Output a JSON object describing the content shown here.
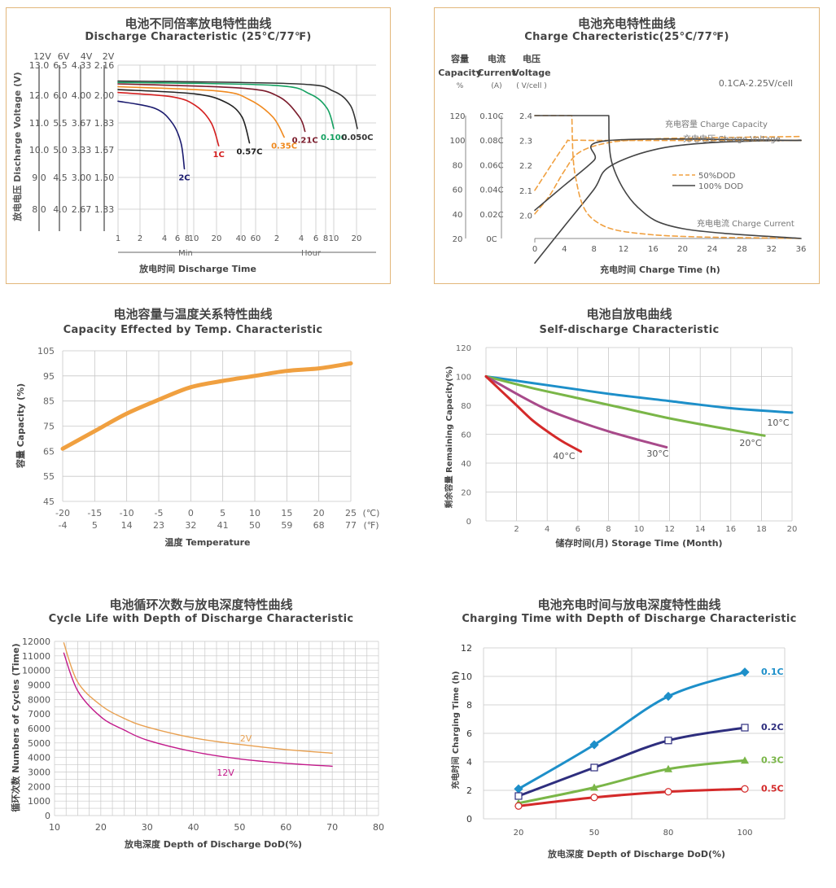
{
  "colors": {
    "border": "#e2b67a",
    "grid": "#c8c8c8",
    "axis": "#888",
    "orange": "#f0a040",
    "teal": "#1d8fc9",
    "green": "#7ab648",
    "purple": "#a84a8a",
    "red": "#d42a2a",
    "navy": "#2e2e7e",
    "magenta": "#c2198a",
    "lightorange": "#e8a050"
  },
  "charts": {
    "discharge": {
      "title_cn": "电池不同倍率放电特性曲线",
      "title_en": "Discharge Characteristic (25°C/77℉)",
      "v_headers": [
        "12V",
        "6V",
        "4V",
        "2V"
      ],
      "v_rows": [
        [
          "13.0",
          "6.5",
          "4.33",
          "2.16"
        ],
        [
          "12.0",
          "6.0",
          "4.00",
          "2.00"
        ],
        [
          "11.0",
          "5.5",
          "3.67",
          "1.83"
        ],
        [
          "10.0",
          "5.0",
          "3.33",
          "1.67"
        ],
        [
          "9.0",
          "4.5",
          "3.00",
          "1.50"
        ],
        [
          "8.0",
          "4.0",
          "2.67",
          "1.33"
        ]
      ],
      "ylabel": "放电电压 Discharge Voltage (V)",
      "x_ticks": [
        "1",
        "2",
        "4",
        "6",
        "8",
        "10",
        "20",
        "40",
        "60",
        "2",
        "4",
        "6",
        "8",
        "10",
        "20"
      ],
      "x_unit_min": "Min",
      "x_unit_hour": "Hour",
      "xlabel": "放电时间 Discharge Time",
      "rate_labels": [
        "2C",
        "1C",
        "0.57C",
        "0.35C",
        "0.21C",
        "0.10C",
        "0.050C"
      ]
    },
    "charge": {
      "title_cn": "电池充电特性曲线",
      "title_en": "Charge Charecteristic(25°C/77℉)",
      "col_headers": [
        [
          "容量",
          "Capacity",
          "%"
        ],
        [
          "电流",
          "Current",
          "(A)"
        ],
        [
          "电压",
          "Voltage",
          "( V/cell )"
        ]
      ],
      "capacity_ticks": [
        "120",
        "100",
        "80",
        "60",
        "40",
        "20"
      ],
      "current_ticks": [
        "0.10C",
        "0.08C",
        "0.06C",
        "0.04C",
        "0.02C",
        "0C"
      ],
      "voltage_ticks": [
        "2.4",
        "2.3",
        "2.2",
        "2.1",
        "2.0"
      ],
      "x_ticks": [
        "0",
        "4",
        "8",
        "12",
        "16",
        "20",
        "24",
        "28",
        "32",
        "36"
      ],
      "xlabel": "充电时间 Charge Time (h)",
      "note": "0.1CA-2.25V/cell",
      "curve_labels": [
        "充电容量 Charge Capacity",
        "充电电压 Charge Voltage",
        "充电电流 Charge Current"
      ],
      "legend": [
        "50%DOD",
        "100% DOD"
      ]
    },
    "temp": {
      "title_cn": "电池容量与温度关系特性曲线",
      "title_en": "Capacity Effected by Temp. Characteristic",
      "ylabel": "容量  Capacity (%)",
      "xlabel": "温度 Temperature",
      "c_unit": "(℃)",
      "f_unit": "(℉)"
    },
    "self": {
      "title_cn": "电池自放电曲线",
      "title_en": "Self-discharge Characteristic",
      "ylabel": "剩余容量 Remaining Capacity(%)",
      "xlabel": "储存时间(月) Storage Time  (Month)"
    },
    "cycle": {
      "title_cn": "电池循环次数与放电深度特性曲线",
      "title_en": "Cycle Life with Depth of Discharge Characteristic",
      "ylabel": "循环次数 Numbers of Cycles (Time)",
      "xlabel": "放电深度 Depth of Discharge DoD(%)"
    },
    "chgtime": {
      "title_cn": "电池充电时间与放电深度特性曲线",
      "title_en": "Charging Time with Depth of Discharge Characteristic",
      "ylabel": "充电时间 Charging Time (h)",
      "xlabel": "放电深度 Depth of Discharge DoD(%)"
    }
  },
  "chart_data": [
    {
      "type": "line",
      "title": "Discharge Characteristic (25°C/77℉)",
      "xscale": "log",
      "ylabel": "Discharge Voltage (V)",
      "series": [
        {
          "name": "2C",
          "x": [
            1,
            3,
            5,
            6.5,
            7.2
          ],
          "y": [
            11.75,
            11.5,
            11.0,
            10.3,
            9.4
          ]
        },
        {
          "name": "1C",
          "x": [
            1,
            5,
            10,
            16,
            20
          ],
          "y": [
            12.05,
            11.9,
            11.6,
            11.0,
            10.2
          ]
        },
        {
          "name": "0.57C",
          "x": [
            1,
            10,
            25,
            40,
            50
          ],
          "y": [
            12.15,
            12.0,
            11.7,
            11.2,
            10.3
          ]
        },
        {
          "name": "0.35C",
          "x": [
            1,
            20,
            50,
            100,
            140
          ],
          "y": [
            12.25,
            12.1,
            11.8,
            11.2,
            10.5
          ]
        },
        {
          "name": "0.21C",
          "x": [
            1,
            40,
            120,
            220,
            260
          ],
          "y": [
            12.35,
            12.2,
            11.9,
            11.2,
            10.7
          ]
        },
        {
          "name": "0.10C",
          "x": [
            1,
            100,
            300,
            500,
            610
          ],
          "y": [
            12.4,
            12.3,
            12.0,
            11.5,
            10.8
          ]
        },
        {
          "name": "0.050C",
          "x": [
            1,
            200,
            600,
            1000,
            1230
          ],
          "y": [
            12.45,
            12.35,
            12.1,
            11.6,
            10.8
          ]
        }
      ]
    },
    {
      "type": "line",
      "title": "Charge Charecteristic(25°C/77℉)",
      "x_unit": "h",
      "series": [
        {
          "name": "充电容量 Charge Capacity (50%DOD)",
          "x": [
            0,
            2,
            4,
            6,
            10,
            16,
            24,
            36
          ],
          "y": [
            40,
            55,
            75,
            90,
            98,
            101,
            102,
            103
          ]
        },
        {
          "name": "充电容量 Charge Capacity (100%DOD)",
          "x": [
            0,
            4,
            8,
            10,
            16,
            24,
            36
          ],
          "y": [
            0,
            30,
            60,
            78,
            92,
            98,
            100
          ]
        },
        {
          "name": "充电电压 Charge Voltage (50%DOD)",
          "x": [
            0,
            4,
            5,
            10,
            36
          ],
          "y": [
            2.1,
            2.28,
            2.3,
            2.3,
            2.3
          ]
        },
        {
          "name": "充电电压 Charge Voltage (100%DOD)",
          "x": [
            0,
            4,
            8,
            10,
            36
          ],
          "y": [
            2.02,
            2.12,
            2.22,
            2.3,
            2.3
          ]
        },
        {
          "name": "充电电流 Charge Current (50%DOD)",
          "x": [
            0,
            5,
            5.5,
            8,
            16,
            36
          ],
          "y": [
            0.1,
            0.1,
            0.05,
            0.015,
            0.003,
            0.0
          ]
        },
        {
          "name": "充电电流 Charge Current (100%DOD)",
          "x": [
            0,
            10,
            10.5,
            14,
            20,
            36
          ],
          "y": [
            0.1,
            0.1,
            0.06,
            0.025,
            0.008,
            0.0
          ]
        }
      ]
    },
    {
      "type": "line",
      "title": "Capacity Effected by Temp. Characteristic",
      "xlabel": "温度 Temperature",
      "ylabel": "容量  Capacity (%)",
      "ylim": [
        45,
        105
      ],
      "x_c": [
        -20,
        -15,
        -10,
        -5,
        0,
        5,
        10,
        15,
        20,
        25
      ],
      "x_f": [
        -4,
        5,
        14,
        23,
        32,
        41,
        50,
        59,
        68,
        77
      ],
      "y_ticks": [
        45,
        55,
        65,
        75,
        85,
        95,
        105
      ],
      "series": [
        {
          "x": [
            -20,
            -15,
            -10,
            -5,
            0,
            5,
            10,
            15,
            20,
            25
          ],
          "y": [
            66,
            73,
            80,
            85.5,
            90.5,
            93,
            95,
            97,
            98,
            100
          ]
        }
      ]
    },
    {
      "type": "line",
      "title": "Self-discharge Characteristic",
      "xlabel": "储存时间(月) Storage Time  (Month)",
      "ylabel": "剩余容量 Remaining Capacity(%)",
      "xlim": [
        0,
        20
      ],
      "ylim": [
        0,
        120
      ],
      "x_ticks": [
        2,
        4,
        6,
        8,
        10,
        12,
        14,
        16,
        18,
        20
      ],
      "y_ticks": [
        0,
        20,
        40,
        60,
        80,
        100,
        120
      ],
      "series": [
        {
          "name": "10°C",
          "x": [
            0,
            4,
            8,
            12,
            16,
            20
          ],
          "y": [
            100,
            94,
            88,
            83,
            78,
            75
          ]
        },
        {
          "name": "20°C",
          "x": [
            0,
            3,
            6,
            9,
            12,
            15,
            18.2
          ],
          "y": [
            100,
            92,
            85,
            78,
            71,
            65,
            59
          ]
        },
        {
          "name": "30°C",
          "x": [
            0,
            2,
            4,
            6,
            8,
            10,
            11.8
          ],
          "y": [
            100,
            88,
            77,
            69,
            62,
            56,
            51
          ]
        },
        {
          "name": "40°C",
          "x": [
            0,
            1,
            2,
            3,
            4,
            5,
            6.2
          ],
          "y": [
            100,
            90,
            80,
            70,
            62,
            55,
            48
          ]
        }
      ]
    },
    {
      "type": "line",
      "title": "Cycle Life with Depth of Discharge Characteristic",
      "xlabel": "放电深度 Depth of Discharge DoD(%)",
      "ylabel": "循环次数 Numbers of Cycles (Time)",
      "xlim": [
        10,
        80
      ],
      "ylim": [
        0,
        12000
      ],
      "x_ticks": [
        10,
        20,
        30,
        40,
        50,
        60,
        70,
        80
      ],
      "y_ticks": [
        0,
        1000,
        2000,
        3000,
        4000,
        5000,
        6000,
        7000,
        8000,
        9000,
        10000,
        11000,
        12000
      ],
      "series": [
        {
          "name": "2V",
          "x": [
            12,
            15,
            20,
            25,
            30,
            40,
            50,
            60,
            70
          ],
          "y": [
            11900,
            9200,
            7600,
            6700,
            6100,
            5350,
            4900,
            4550,
            4300
          ]
        },
        {
          "name": "12V",
          "x": [
            12,
            15,
            20,
            25,
            30,
            40,
            50,
            60,
            70
          ],
          "y": [
            11200,
            8600,
            6800,
            5900,
            5200,
            4400,
            3900,
            3600,
            3400
          ]
        }
      ]
    },
    {
      "type": "line",
      "title": "Charging Time with Depth of Discharge Characteristic",
      "xlabel": "放电深度 Depth of Discharge DoD(%)",
      "ylabel": "充电时间 Charging Time (h)",
      "categories": [
        "20",
        "50",
        "80",
        "100"
      ],
      "ylim": [
        0,
        12
      ],
      "y_ticks": [
        0,
        2,
        4,
        6,
        8,
        10,
        12
      ],
      "series": [
        {
          "name": "0.1C",
          "values": [
            2.1,
            5.2,
            8.6,
            10.3
          ]
        },
        {
          "name": "0.2C",
          "values": [
            1.6,
            3.6,
            5.5,
            6.4
          ]
        },
        {
          "name": "0.3C",
          "values": [
            1.1,
            2.2,
            3.5,
            4.1
          ]
        },
        {
          "name": "0.5C",
          "values": [
            0.9,
            1.5,
            1.9,
            2.1
          ]
        }
      ]
    }
  ]
}
